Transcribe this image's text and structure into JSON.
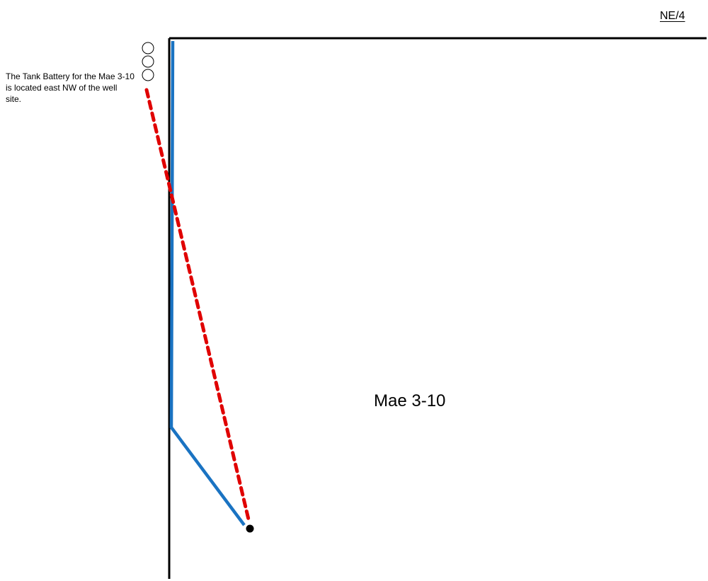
{
  "header": {
    "quarter_label": "NE/4"
  },
  "note": {
    "text": "The Tank Battery for the Mae 3-10 is located east NW of the well site."
  },
  "well": {
    "name": "Mae 3-10"
  },
  "colors": {
    "section_line": "#000000",
    "flowline": "#1a73c2",
    "access_route": "#e00000",
    "tank_outline": "#000000",
    "wellhead": "#000000"
  },
  "icons": {
    "tanks": [
      "tank-icon",
      "tank-icon",
      "tank-icon"
    ],
    "wellhead": "wellhead-icon"
  }
}
